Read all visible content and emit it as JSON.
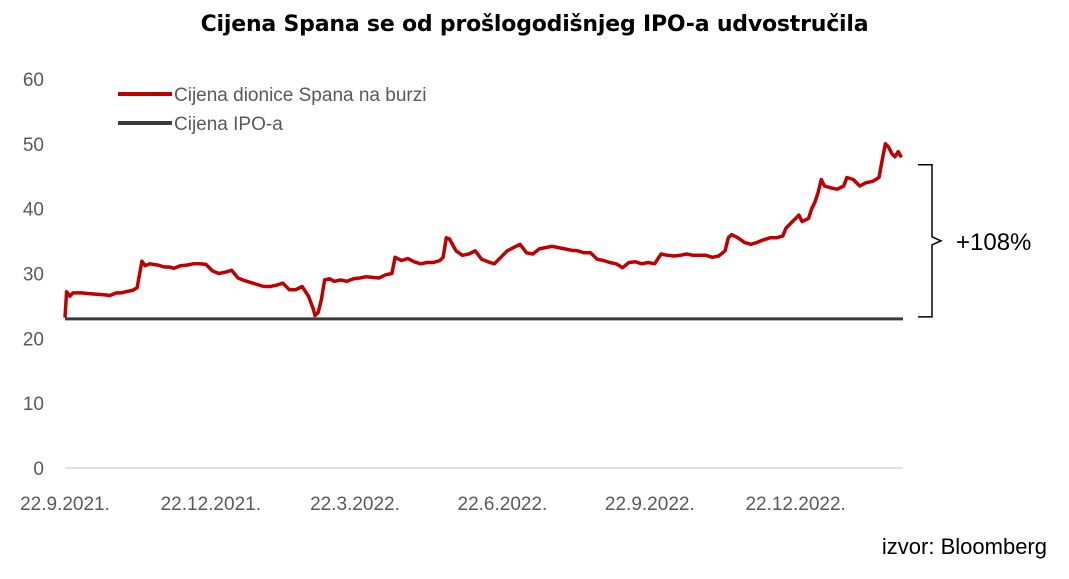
{
  "chart_data": {
    "type": "line",
    "title": "Cijena Spana se od prošlogodišnjeg IPO-a udvostručila",
    "xlabel": "",
    "ylabel": "",
    "ylim": [
      0,
      60
    ],
    "yticks": [
      0,
      10,
      20,
      30,
      40,
      50,
      60
    ],
    "x_tick_labels": [
      "22.9.2021.",
      "22.12.2021.",
      "22.3.2022.",
      "22.6.2022.",
      "22.9.2022.",
      "22.12.2022."
    ],
    "x_range_days": [
      0,
      523
    ],
    "x_tick_days": [
      0,
      91,
      181,
      273,
      365,
      456
    ],
    "legend_position": "top-left",
    "series": [
      {
        "name": "Cijena dionice Spana na burzi",
        "color": "#c00000",
        "points": [
          [
            0,
            23.2
          ],
          [
            1,
            27.2
          ],
          [
            3,
            26.5
          ],
          [
            5,
            27.0
          ],
          [
            10,
            27.0
          ],
          [
            15,
            26.9
          ],
          [
            20,
            26.8
          ],
          [
            25,
            26.7
          ],
          [
            28,
            26.6
          ],
          [
            32,
            27.0
          ],
          [
            35,
            27.0
          ],
          [
            38,
            27.2
          ],
          [
            42,
            27.4
          ],
          [
            45,
            27.8
          ],
          [
            48,
            31.9
          ],
          [
            50,
            31.2
          ],
          [
            53,
            31.5
          ],
          [
            58,
            31.3
          ],
          [
            62,
            31.0
          ],
          [
            65,
            31.0
          ],
          [
            68,
            30.8
          ],
          [
            72,
            31.2
          ],
          [
            76,
            31.3
          ],
          [
            80,
            31.5
          ],
          [
            84,
            31.5
          ],
          [
            88,
            31.4
          ],
          [
            92,
            30.4
          ],
          [
            96,
            30.0
          ],
          [
            100,
            30.2
          ],
          [
            104,
            30.5
          ],
          [
            108,
            29.3
          ],
          [
            112,
            28.9
          ],
          [
            116,
            28.6
          ],
          [
            120,
            28.3
          ],
          [
            124,
            28.0
          ],
          [
            128,
            28.0
          ],
          [
            132,
            28.2
          ],
          [
            136,
            28.5
          ],
          [
            140,
            27.5
          ],
          [
            144,
            27.5
          ],
          [
            148,
            28.0
          ],
          [
            152,
            26.5
          ],
          [
            155,
            24.5
          ],
          [
            156,
            23.5
          ],
          [
            158,
            24.0
          ],
          [
            160,
            26.0
          ],
          [
            162,
            29.0
          ],
          [
            165,
            29.2
          ],
          [
            168,
            28.8
          ],
          [
            172,
            29.0
          ],
          [
            176,
            28.8
          ],
          [
            180,
            29.2
          ],
          [
            184,
            29.3
          ],
          [
            188,
            29.5
          ],
          [
            192,
            29.4
          ],
          [
            196,
            29.3
          ],
          [
            200,
            29.8
          ],
          [
            204,
            30.0
          ],
          [
            206,
            32.5
          ],
          [
            210,
            32.0
          ],
          [
            214,
            32.3
          ],
          [
            218,
            31.8
          ],
          [
            222,
            31.5
          ],
          [
            226,
            31.7
          ],
          [
            230,
            31.7
          ],
          [
            234,
            32.0
          ],
          [
            236,
            32.5
          ],
          [
            238,
            35.5
          ],
          [
            240,
            35.3
          ],
          [
            244,
            33.5
          ],
          [
            248,
            32.8
          ],
          [
            252,
            33.0
          ],
          [
            256,
            33.5
          ],
          [
            260,
            32.2
          ],
          [
            264,
            31.8
          ],
          [
            268,
            31.5
          ],
          [
            272,
            32.5
          ],
          [
            276,
            33.5
          ],
          [
            280,
            34.0
          ],
          [
            284,
            34.5
          ],
          [
            288,
            33.2
          ],
          [
            292,
            33.0
          ],
          [
            296,
            33.8
          ],
          [
            300,
            34.0
          ],
          [
            304,
            34.2
          ],
          [
            308,
            34.0
          ],
          [
            312,
            33.8
          ],
          [
            316,
            33.6
          ],
          [
            320,
            33.5
          ],
          [
            324,
            33.2
          ],
          [
            328,
            33.2
          ],
          [
            332,
            32.2
          ],
          [
            336,
            32.0
          ],
          [
            340,
            31.7
          ],
          [
            344,
            31.5
          ],
          [
            348,
            30.9
          ],
          [
            352,
            31.7
          ],
          [
            356,
            31.8
          ],
          [
            360,
            31.5
          ],
          [
            364,
            31.7
          ],
          [
            368,
            31.5
          ],
          [
            372,
            33.0
          ],
          [
            376,
            32.8
          ],
          [
            380,
            32.7
          ],
          [
            384,
            32.8
          ],
          [
            388,
            33.0
          ],
          [
            392,
            32.8
          ],
          [
            396,
            32.8
          ],
          [
            400,
            32.8
          ],
          [
            404,
            32.5
          ],
          [
            408,
            32.7
          ],
          [
            412,
            33.5
          ],
          [
            414,
            35.5
          ],
          [
            416,
            36.0
          ],
          [
            420,
            35.5
          ],
          [
            424,
            34.8
          ],
          [
            428,
            34.5
          ],
          [
            432,
            34.8
          ],
          [
            436,
            35.2
          ],
          [
            440,
            35.5
          ],
          [
            444,
            35.5
          ],
          [
            448,
            35.8
          ],
          [
            450,
            37.0
          ],
          [
            454,
            38.0
          ],
          [
            458,
            39.0
          ],
          [
            460,
            38.0
          ],
          [
            464,
            38.5
          ],
          [
            466,
            40.0
          ],
          [
            468,
            41.0
          ],
          [
            470,
            42.5
          ],
          [
            472,
            44.5
          ],
          [
            474,
            43.5
          ],
          [
            478,
            43.2
          ],
          [
            482,
            43.0
          ],
          [
            486,
            43.5
          ],
          [
            488,
            44.8
          ],
          [
            492,
            44.5
          ],
          [
            496,
            43.5
          ],
          [
            500,
            44.0
          ],
          [
            504,
            44.2
          ],
          [
            508,
            44.8
          ],
          [
            510,
            47.5
          ],
          [
            512,
            50.0
          ],
          [
            514,
            49.5
          ],
          [
            516,
            48.5
          ],
          [
            518,
            48.0
          ],
          [
            520,
            48.8
          ],
          [
            522,
            47.9
          ]
        ]
      },
      {
        "name": "Cijena IPO-a",
        "color": "#3a3a3a",
        "points": [
          [
            0,
            23.0
          ],
          [
            523,
            23.0
          ]
        ]
      }
    ],
    "annotations": [
      {
        "text": "+108%",
        "from_value": 23.0,
        "to_value": 48.0
      }
    ]
  },
  "source": "izvor: Bloomberg"
}
